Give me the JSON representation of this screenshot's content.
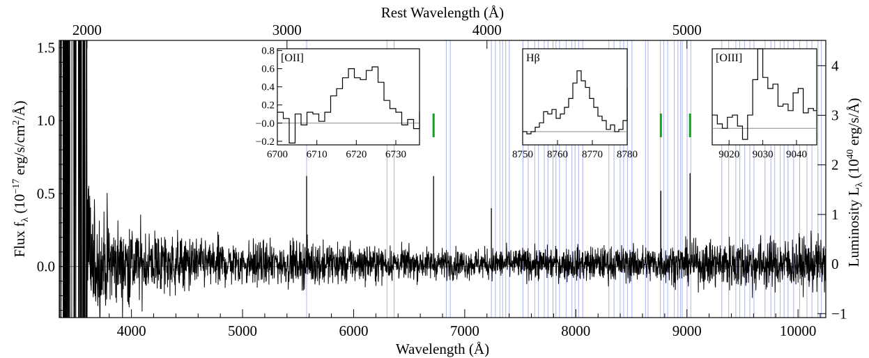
{
  "chart_data": {
    "type": "line",
    "title": "",
    "xlabel": "Wavelength (Å)",
    "ylabel_left": "Flux f_λ (10^-17 erg/s/cm^2/Å)",
    "ylabel_right": "Luminosity L_λ (10^40 erg/s/Å)",
    "xlabel_top": "Rest Wavelength (Å)",
    "xlim": [
      3350,
      10250
    ],
    "ylim": [
      -0.35,
      1.55
    ],
    "y2lim": [
      -1.08,
      4.51
    ],
    "redshift": 0.8,
    "x_ticks": [
      4000,
      5000,
      6000,
      7000,
      8000,
      9000,
      10000
    ],
    "y_ticks": [
      0.0,
      0.5,
      1.0,
      1.5
    ],
    "y2_ticks": [
      -1,
      0,
      1,
      2,
      3,
      4
    ],
    "top_ticks": [
      2000,
      3000,
      4000,
      5000
    ],
    "zero_line": 0.0,
    "series": [
      {
        "name": "",
        "color": "#000000",
        "envelope": {
          "x": [
            3350,
            3550,
            3650,
            3800,
            4000,
            4300,
            4600,
            5000,
            5400,
            5600,
            6000,
            6500,
            7000,
            7500,
            8000,
            8500,
            9000,
            9300,
            9600,
            9800,
            10250
          ],
          "amplitude": [
            1.5,
            1.45,
            0.5,
            0.42,
            0.35,
            0.28,
            0.22,
            0.2,
            0.18,
            0.2,
            0.17,
            0.14,
            0.13,
            0.14,
            0.15,
            0.16,
            0.18,
            0.22,
            0.25,
            0.22,
            0.24
          ]
        },
        "lines": [
          {
            "x": 5577,
            "y": 0.62
          },
          {
            "x": 6720,
            "y": 0.62
          },
          {
            "x": 7240,
            "y": 0.4
          },
          {
            "x": 8765,
            "y": 0.52
          },
          {
            "x": 9028,
            "y": 0.64
          }
        ]
      }
    ],
    "sky_lines_color": "#a9b4ee",
    "sky_lines": [
      5577,
      6300,
      6364,
      6834,
      6870,
      7240,
      7276,
      7316,
      7341,
      7369,
      7401,
      7524,
      7571,
      7630,
      7664,
      7716,
      7750,
      7794,
      7821,
      7853,
      7913,
      7964,
      7993,
      8025,
      8062,
      8297,
      8344,
      8399,
      8430,
      8465,
      8505,
      8627,
      8650,
      8761,
      8791,
      8827,
      8886,
      8919,
      8943,
      8958,
      9002,
      9035,
      9314,
      9376,
      9440,
      9476,
      9520,
      9566,
      9603,
      9703,
      9756,
      9790,
      9840,
      9875,
      9910,
      9960,
      10015,
      10080,
      10125,
      10180,
      10210
    ],
    "line_markers_color": "#12a31c",
    "line_markers": [
      6720,
      8765,
      9028
    ],
    "insets": [
      {
        "label": "[OII]",
        "xlim": [
          6700,
          6736
        ],
        "ylim": [
          -0.24,
          0.82
        ],
        "xticks": [
          6700,
          6710,
          6720,
          6730
        ],
        "yticks": [
          -0.2,
          -0.0,
          0.2,
          0.4,
          0.6,
          0.8
        ],
        "x": [
          6700,
          6701.5,
          6703,
          6704.5,
          6706,
          6707.5,
          6709,
          6710.5,
          6712,
          6713.5,
          6715,
          6716.5,
          6718,
          6719.5,
          6721,
          6722.5,
          6724,
          6725.5,
          6727,
          6728.5,
          6730,
          6731.5,
          6733,
          6734.5,
          6736
        ],
        "y": [
          0.12,
          0.05,
          -0.22,
          0.1,
          -0.02,
          0.12,
          0.1,
          0.02,
          0.12,
          0.3,
          0.38,
          0.5,
          0.6,
          0.5,
          0.48,
          0.58,
          0.62,
          0.45,
          0.25,
          0.16,
          0.12,
          -0.02,
          0.04,
          -0.06,
          0.12
        ]
      },
      {
        "label": "Hβ",
        "xlim": [
          8750,
          8780
        ],
        "ylim": [
          -0.12,
          0.75
        ],
        "xticks": [
          8750,
          8760,
          8770,
          8780
        ],
        "yticks": [],
        "x": [
          8750,
          8751.2,
          8752.4,
          8753.6,
          8754.8,
          8756,
          8757.2,
          8758.4,
          8759.6,
          8760.8,
          8762,
          8763.2,
          8764.4,
          8765.6,
          8766.8,
          8768,
          8769.2,
          8770.4,
          8771.6,
          8772.8,
          8774,
          8775.2,
          8776.4,
          8777.6,
          8778.8,
          8780
        ],
        "y": [
          0.0,
          -0.02,
          0.0,
          0.04,
          0.08,
          0.18,
          0.16,
          0.2,
          0.12,
          0.16,
          0.22,
          0.3,
          0.44,
          0.55,
          0.46,
          0.4,
          0.3,
          0.22,
          0.14,
          0.1,
          0.02,
          0.06,
          0.0,
          0.02,
          0.1,
          0.4
        ]
      },
      {
        "label": "[OIII]",
        "xlim": [
          9015,
          9046
        ],
        "ylim": [
          -0.15,
          0.72
        ],
        "xticks": [
          9020,
          9030,
          9040
        ],
        "yticks": [],
        "x": [
          9015,
          9016.5,
          9018,
          9019.5,
          9021,
          9022.5,
          9024,
          9025.5,
          9027,
          9028.5,
          9030,
          9031.5,
          9033,
          9034.5,
          9036,
          9037.5,
          9039,
          9040.5,
          9042,
          9043.5,
          9045,
          9046
        ],
        "y": [
          0.12,
          0.04,
          0.0,
          0.1,
          0.12,
          0.02,
          -0.1,
          0.12,
          0.44,
          0.72,
          0.46,
          0.36,
          0.4,
          0.2,
          0.22,
          0.16,
          0.32,
          0.36,
          0.14,
          0.18,
          0.16,
          0.16
        ]
      }
    ]
  }
}
